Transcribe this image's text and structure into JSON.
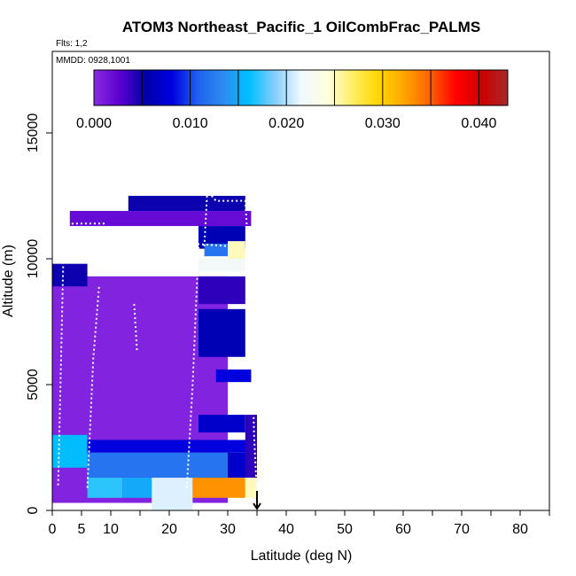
{
  "chart_data": {
    "type": "heatmap",
    "title": "ATOM3 Northeast_Pacific_1 OilCombFrac_PALMS",
    "subtitle_flights": "Flts: 1,2",
    "subtitle_dates": "MMDD: 0928,1001",
    "xlabel": "Latitude (deg N)",
    "ylabel": "Altitude (m)",
    "xlim": [
      0,
      85
    ],
    "ylim": [
      0,
      18000
    ],
    "x_ticks": [
      0,
      5,
      10,
      20,
      30,
      40,
      50,
      60,
      70,
      80
    ],
    "y_ticks": [
      0,
      5000,
      10000,
      15000
    ],
    "colorbar": {
      "range": [
        0,
        0.043
      ],
      "tick_values": [
        0.0,
        0.01,
        0.02,
        0.03,
        0.04
      ],
      "tick_labels": [
        "0.000",
        "0.010",
        "0.020",
        "0.030",
        "0.040"
      ],
      "colors": [
        "#8a2be2",
        "#5a00d0",
        "#0000a8",
        "#0000e0",
        "#1e60f0",
        "#2f8cf0",
        "#00bfff",
        "#87cefa",
        "#f0f8ff",
        "#ffffe0",
        "#ffee66",
        "#ffd700",
        "#ffa500",
        "#ff6000",
        "#ff0000",
        "#d00000",
        "#a52a2a"
      ]
    },
    "cells": [
      {
        "lat": [
          0,
          30
        ],
        "alt": [
          300,
          9300
        ],
        "value": 0.0005
      },
      {
        "lat": [
          3,
          34
        ],
        "alt": [
          11300,
          11900
        ],
        "value": 0.002
      },
      {
        "lat": [
          13,
          33
        ],
        "alt": [
          11900,
          12500
        ],
        "value": 0.005
      },
      {
        "lat": [
          25,
          33
        ],
        "alt": [
          10400,
          11300
        ],
        "value": 0.006
      },
      {
        "lat": [
          26,
          30
        ],
        "alt": [
          10100,
          10600
        ],
        "value": 0.012
      },
      {
        "lat": [
          30,
          33
        ],
        "alt": [
          10000,
          10700
        ],
        "value": 0.025
      },
      {
        "lat": [
          25,
          33
        ],
        "alt": [
          9500,
          10000
        ],
        "value": 0.022
      },
      {
        "lat": [
          0,
          6
        ],
        "alt": [
          8900,
          9800
        ],
        "value": 0.005
      },
      {
        "lat": [
          25,
          33
        ],
        "alt": [
          8200,
          9300
        ],
        "value": 0.004
      },
      {
        "lat": [
          25,
          33
        ],
        "alt": [
          6100,
          8000
        ],
        "value": 0.006
      },
      {
        "lat": [
          28,
          34
        ],
        "alt": [
          5100,
          5600
        ],
        "value": 0.008
      },
      {
        "lat": [
          25,
          33
        ],
        "alt": [
          3100,
          3800
        ],
        "value": 0.007
      },
      {
        "lat": [
          0,
          6
        ],
        "alt": [
          1700,
          3000
        ],
        "value": 0.016
      },
      {
        "lat": [
          6,
          35
        ],
        "alt": [
          2300,
          2800
        ],
        "value": 0.008
      },
      {
        "lat": [
          6,
          30
        ],
        "alt": [
          1300,
          2300
        ],
        "value": 0.012
      },
      {
        "lat": [
          30,
          35
        ],
        "alt": [
          1300,
          2300
        ],
        "value": 0.007
      },
      {
        "lat": [
          6,
          12
        ],
        "alt": [
          500,
          1300
        ],
        "value": 0.017
      },
      {
        "lat": [
          12,
          17
        ],
        "alt": [
          500,
          1300
        ],
        "value": 0.015
      },
      {
        "lat": [
          17,
          24
        ],
        "alt": [
          0,
          1300
        ],
        "value": 0.021
      },
      {
        "lat": [
          24,
          33
        ],
        "alt": [
          500,
          1300
        ],
        "value": 0.033
      },
      {
        "lat": [
          33,
          35
        ],
        "alt": [
          1300,
          3800
        ],
        "value": 0.004
      },
      {
        "lat": [
          33,
          35
        ],
        "alt": [
          500,
          1300
        ],
        "value": 0.025
      }
    ],
    "flight_tracks": [
      [
        [
          1,
          1000
        ],
        [
          1.5,
          6000
        ],
        [
          2,
          11200
        ],
        [
          3.5,
          11400
        ],
        [
          9,
          11400
        ]
      ],
      [
        [
          12,
          10800
        ],
        [
          17,
          10700
        ],
        [
          24,
          10600
        ],
        [
          30,
          10500
        ]
      ],
      [
        [
          26,
          10500
        ],
        [
          26.5,
          12700
        ],
        [
          28,
          12300
        ],
        [
          33,
          12300
        ],
        [
          34,
          8500
        ],
        [
          34.5,
          3000
        ],
        [
          35,
          600
        ]
      ],
      [
        [
          6,
          900
        ],
        [
          7,
          6000
        ],
        [
          8,
          8900
        ]
      ],
      [
        [
          9,
          9800
        ],
        [
          10,
          11200
        ]
      ],
      [
        [
          14,
          8200
        ],
        [
          14.5,
          6300
        ]
      ],
      [
        [
          23,
          900
        ],
        [
          24,
          5000
        ],
        [
          25,
          10500
        ]
      ]
    ],
    "annotations": [
      {
        "type": "arrow",
        "lat": 35,
        "alt": 0
      }
    ]
  }
}
